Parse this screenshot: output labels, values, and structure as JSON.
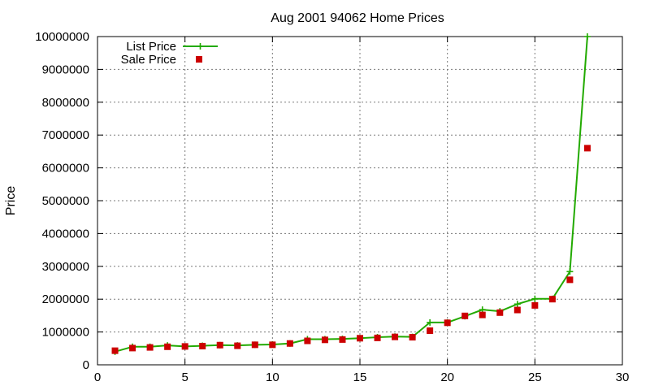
{
  "chart_data": {
    "type": "line",
    "title": "Aug 2001 94062 Home Prices",
    "xlabel": "",
    "ylabel": "Price",
    "xlim": [
      0,
      30
    ],
    "ylim": [
      0,
      10000000
    ],
    "x_ticks": [
      0,
      5,
      10,
      15,
      20,
      25,
      30
    ],
    "y_ticks": [
      0,
      1000000,
      2000000,
      3000000,
      4000000,
      5000000,
      6000000,
      7000000,
      8000000,
      9000000,
      10000000
    ],
    "x_tick_labels": [
      "0",
      "5",
      "10",
      "15",
      "20",
      "25",
      "30"
    ],
    "y_tick_labels": [
      "0",
      "1000000",
      "2000000",
      "3000000",
      "4000000",
      "5000000",
      "6000000",
      "7000000",
      "8000000",
      "9000000",
      "10000000"
    ],
    "grid": true,
    "legend_position": "top-left",
    "series": [
      {
        "name": "List Price",
        "style": "line-plus",
        "color": "#22aa00",
        "x": [
          1,
          2,
          3,
          4,
          5,
          6,
          7,
          8,
          9,
          10,
          11,
          12,
          13,
          14,
          15,
          16,
          17,
          18,
          19,
          20,
          21,
          22,
          23,
          24,
          25,
          26,
          27,
          28
        ],
        "y": [
          400000,
          550000,
          550000,
          590000,
          560000,
          580000,
          600000,
          590000,
          610000,
          620000,
          650000,
          780000,
          780000,
          790000,
          810000,
          840000,
          860000,
          850000,
          1290000,
          1290000,
          1480000,
          1680000,
          1630000,
          1850000,
          2010000,
          2010000,
          2840000,
          10000000
        ]
      },
      {
        "name": "Sale Price",
        "style": "square-markers",
        "color": "#cc0000",
        "x": [
          1,
          2,
          3,
          4,
          5,
          6,
          7,
          8,
          9,
          10,
          11,
          12,
          13,
          14,
          15,
          16,
          17,
          18,
          19,
          20,
          21,
          22,
          23,
          24,
          25,
          26,
          27,
          28
        ],
        "y": [
          430000,
          510000,
          530000,
          550000,
          560000,
          570000,
          600000,
          580000,
          610000,
          610000,
          650000,
          730000,
          760000,
          770000,
          810000,
          820000,
          850000,
          840000,
          1040000,
          1280000,
          1490000,
          1520000,
          1590000,
          1670000,
          1810000,
          2000000,
          2590000,
          6600000
        ]
      }
    ]
  }
}
